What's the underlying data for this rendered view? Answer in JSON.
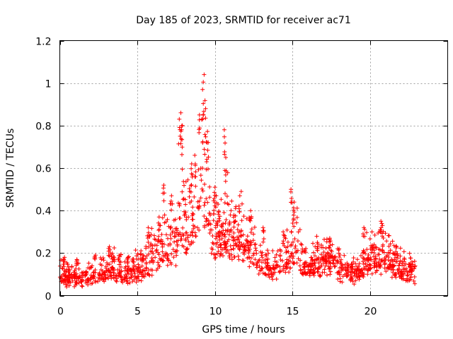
{
  "chart_data": {
    "type": "scatter",
    "title": "Day 185 of 2023, SRMTID for receiver ac71",
    "xlabel": "GPS time / hours",
    "ylabel": "SRMTID / TECUs",
    "xlim": [
      0,
      25
    ],
    "ylim": [
      0,
      1.2
    ],
    "xticks": [
      0,
      5,
      10,
      15,
      20
    ],
    "xtick_labels": [
      "0",
      "5",
      "10",
      "15",
      "20"
    ],
    "yticks": [
      0,
      0.2,
      0.4,
      0.6,
      0.8,
      1.0,
      1.2
    ],
    "ytick_labels": [
      "0",
      "0.2",
      "0.4",
      "0.6",
      "0.8",
      "1",
      "1.2"
    ],
    "grid": true,
    "marker": "+",
    "series": [
      {
        "name": "SRMTID",
        "color": "#ff0000",
        "profile": [
          [
            0.0,
            0.1
          ],
          [
            0.5,
            0.1
          ],
          [
            1.0,
            0.09
          ],
          [
            1.5,
            0.09
          ],
          [
            2.0,
            0.11
          ],
          [
            2.5,
            0.12
          ],
          [
            3.0,
            0.13
          ],
          [
            3.5,
            0.14
          ],
          [
            4.0,
            0.13
          ],
          [
            4.5,
            0.12
          ],
          [
            5.0,
            0.13
          ],
          [
            5.5,
            0.17
          ],
          [
            6.0,
            0.21
          ],
          [
            6.5,
            0.24
          ],
          [
            7.0,
            0.25
          ],
          [
            7.5,
            0.29
          ],
          [
            7.8,
            0.42
          ],
          [
            8.0,
            0.38
          ],
          [
            8.5,
            0.4
          ],
          [
            8.8,
            0.46
          ],
          [
            9.0,
            0.5
          ],
          [
            9.3,
            0.6
          ],
          [
            9.5,
            0.55
          ],
          [
            9.8,
            0.33
          ],
          [
            10.0,
            0.32
          ],
          [
            10.5,
            0.33
          ],
          [
            10.8,
            0.38
          ],
          [
            11.0,
            0.3
          ],
          [
            11.5,
            0.31
          ],
          [
            12.0,
            0.29
          ],
          [
            12.5,
            0.23
          ],
          [
            13.0,
            0.17
          ],
          [
            13.5,
            0.15
          ],
          [
            14.0,
            0.16
          ],
          [
            14.5,
            0.19
          ],
          [
            15.0,
            0.24
          ],
          [
            15.3,
            0.3
          ],
          [
            15.6,
            0.18
          ],
          [
            16.0,
            0.15
          ],
          [
            16.5,
            0.17
          ],
          [
            17.0,
            0.18
          ],
          [
            17.5,
            0.2
          ],
          [
            18.0,
            0.14
          ],
          [
            18.5,
            0.14
          ],
          [
            19.0,
            0.12
          ],
          [
            19.5,
            0.15
          ],
          [
            20.0,
            0.21
          ],
          [
            20.5,
            0.19
          ],
          [
            21.0,
            0.23
          ],
          [
            21.5,
            0.16
          ],
          [
            22.0,
            0.15
          ],
          [
            22.5,
            0.13
          ],
          [
            22.9,
            0.12
          ]
        ],
        "peaks": [
          [
            0.3,
            0.18
          ],
          [
            1.1,
            0.17
          ],
          [
            2.3,
            0.19
          ],
          [
            3.2,
            0.23
          ],
          [
            4.4,
            0.18
          ],
          [
            5.7,
            0.32
          ],
          [
            6.4,
            0.37
          ],
          [
            6.7,
            0.52
          ],
          [
            7.2,
            0.47
          ],
          [
            7.7,
            0.83
          ],
          [
            7.8,
            0.86
          ],
          [
            7.9,
            0.8
          ],
          [
            8.5,
            0.62
          ],
          [
            8.7,
            0.66
          ],
          [
            9.0,
            0.85
          ],
          [
            9.2,
            0.97
          ],
          [
            9.3,
            1.04
          ],
          [
            9.4,
            0.88
          ],
          [
            9.5,
            0.72
          ],
          [
            10.0,
            0.51
          ],
          [
            10.2,
            0.43
          ],
          [
            10.6,
            0.78
          ],
          [
            10.7,
            0.65
          ],
          [
            11.6,
            0.47
          ],
          [
            12.3,
            0.4
          ],
          [
            13.1,
            0.32
          ],
          [
            14.4,
            0.3
          ],
          [
            14.9,
            0.5
          ],
          [
            15.1,
            0.44
          ],
          [
            16.6,
            0.25
          ],
          [
            17.4,
            0.27
          ],
          [
            18.0,
            0.22
          ],
          [
            19.6,
            0.32
          ],
          [
            20.7,
            0.35
          ],
          [
            20.8,
            0.33
          ],
          [
            21.7,
            0.23
          ],
          [
            22.6,
            0.15
          ]
        ],
        "n_points": 1500
      }
    ]
  }
}
